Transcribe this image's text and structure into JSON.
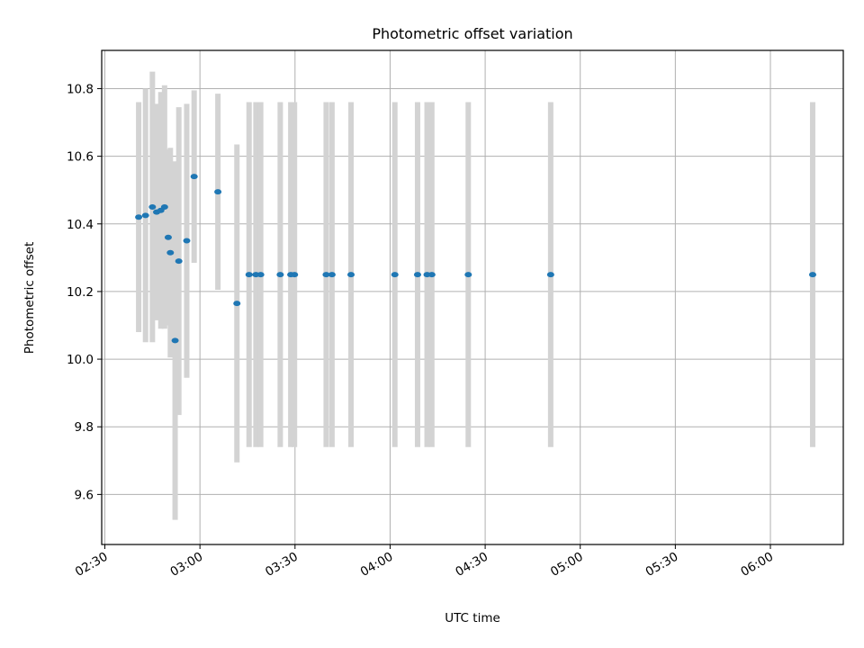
{
  "chart_data": {
    "type": "scatter",
    "title": "Photometric offset variation",
    "xlabel": "UTC time",
    "ylabel": "Photometric offset",
    "xlim": [
      "02:29",
      "06:23"
    ],
    "ylim": [
      9.452,
      10.913
    ],
    "grid": true,
    "x_ticks": [
      "02:30",
      "03:00",
      "03:30",
      "04:00",
      "04:30",
      "05:00",
      "05:30",
      "06:00"
    ],
    "y_ticks": [
      9.6,
      9.8,
      10.0,
      10.2,
      10.4,
      10.6,
      10.8
    ],
    "y_tick_labels": [
      "9.6",
      "9.8",
      "10.0",
      "10.2",
      "10.4",
      "10.6",
      "10.8"
    ],
    "colors": {
      "point": "#1f77b4",
      "errorbar": "#d3d3d3",
      "grid": "#b0b0b0"
    },
    "series": [
      {
        "points": [
          {
            "x": "02:40:40",
            "y": 10.42,
            "yerr": 0.34
          },
          {
            "x": "02:42:50",
            "y": 10.425,
            "yerr": 0.375
          },
          {
            "x": "02:45:00",
            "y": 10.45,
            "yerr": 0.4
          },
          {
            "x": "02:46:20",
            "y": 10.435,
            "yerr": 0.32
          },
          {
            "x": "02:47:40",
            "y": 10.44,
            "yerr": 0.35
          },
          {
            "x": "02:48:50",
            "y": 10.45,
            "yerr": 0.36
          },
          {
            "x": "02:50:00",
            "y": 10.36,
            "yerr": 0.26
          },
          {
            "x": "02:50:40",
            "y": 10.315,
            "yerr": 0.31
          },
          {
            "x": "02:52:10",
            "y": 10.055,
            "yerr": 0.53
          },
          {
            "x": "02:53:20",
            "y": 10.29,
            "yerr": 0.455
          },
          {
            "x": "02:55:50",
            "y": 10.35,
            "yerr": 0.405
          },
          {
            "x": "02:58:10",
            "y": 10.54,
            "yerr": 0.255
          },
          {
            "x": "03:05:40",
            "y": 10.495,
            "yerr": 0.29
          },
          {
            "x": "03:11:40",
            "y": 10.165,
            "yerr": 0.47
          },
          {
            "x": "03:15:30",
            "y": 10.25,
            "yerr": 0.51
          },
          {
            "x": "03:17:40",
            "y": 10.25,
            "yerr": 0.51
          },
          {
            "x": "03:19:10",
            "y": 10.25,
            "yerr": 0.51
          },
          {
            "x": "03:25:20",
            "y": 10.25,
            "yerr": 0.51
          },
          {
            "x": "03:28:40",
            "y": 10.25,
            "yerr": 0.51
          },
          {
            "x": "03:29:50",
            "y": 10.25,
            "yerr": 0.51
          },
          {
            "x": "03:39:50",
            "y": 10.25,
            "yerr": 0.51
          },
          {
            "x": "03:41:40",
            "y": 10.25,
            "yerr": 0.51
          },
          {
            "x": "03:47:40",
            "y": 10.25,
            "yerr": 0.51
          },
          {
            "x": "04:01:30",
            "y": 10.25,
            "yerr": 0.51
          },
          {
            "x": "04:08:40",
            "y": 10.25,
            "yerr": 0.51
          },
          {
            "x": "04:11:40",
            "y": 10.25,
            "yerr": 0.51
          },
          {
            "x": "04:13:10",
            "y": 10.25,
            "yerr": 0.51
          },
          {
            "x": "04:24:40",
            "y": 10.25,
            "yerr": 0.51
          },
          {
            "x": "04:50:40",
            "y": 10.25,
            "yerr": 0.51
          },
          {
            "x": "06:13:20",
            "y": 10.25,
            "yerr": 0.51
          }
        ]
      }
    ]
  }
}
